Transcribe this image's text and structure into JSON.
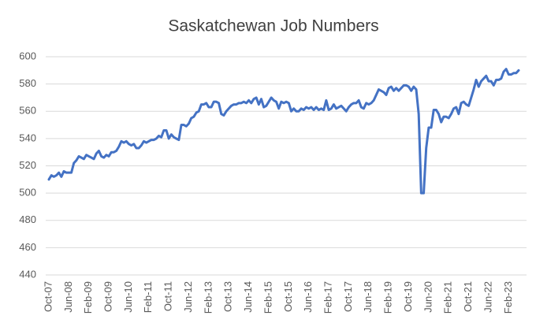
{
  "chart_data": {
    "type": "line",
    "title": "Saskatchewan Job Numbers",
    "categories": [
      "Oct-07",
      null,
      null,
      null,
      null,
      null,
      null,
      null,
      "Jun-08",
      null,
      null,
      null,
      null,
      null,
      null,
      null,
      "Feb-09",
      null,
      null,
      null,
      null,
      null,
      null,
      null,
      "Oct-09",
      null,
      null,
      null,
      null,
      null,
      null,
      null,
      "Jun-10",
      null,
      null,
      null,
      null,
      null,
      null,
      null,
      "Feb-11",
      null,
      null,
      null,
      null,
      null,
      null,
      null,
      "Oct-11",
      null,
      null,
      null,
      null,
      null,
      null,
      null,
      "Jun-12",
      null,
      null,
      null,
      null,
      null,
      null,
      null,
      "Feb-13",
      null,
      null,
      null,
      null,
      null,
      null,
      null,
      "Oct-13",
      null,
      null,
      null,
      null,
      null,
      null,
      null,
      "Jun-14",
      null,
      null,
      null,
      null,
      null,
      null,
      null,
      "Feb-15",
      null,
      null,
      null,
      null,
      null,
      null,
      null,
      "Oct-15",
      null,
      null,
      null,
      null,
      null,
      null,
      null,
      "Jun-16",
      null,
      null,
      null,
      null,
      null,
      null,
      null,
      "Feb-17",
      null,
      null,
      null,
      null,
      null,
      null,
      null,
      "Oct-17",
      null,
      null,
      null,
      null,
      null,
      null,
      null,
      "Jun-18",
      null,
      null,
      null,
      null,
      null,
      null,
      null,
      "Feb-19",
      null,
      null,
      null,
      null,
      null,
      null,
      null,
      "Oct-19",
      null,
      null,
      null,
      null,
      null,
      null,
      null,
      "Jun-20",
      null,
      null,
      null,
      null,
      null,
      null,
      null,
      "Feb-21",
      null,
      null,
      null,
      null,
      null,
      null,
      null,
      "Oct-21",
      null,
      null,
      null,
      null,
      null,
      null,
      null,
      "Jun-22",
      null,
      null,
      null,
      null,
      null,
      null,
      null,
      "Feb-23",
      null,
      null,
      null,
      null
    ],
    "values": [
      510,
      513,
      512,
      513,
      515,
      512,
      516,
      515,
      515,
      515,
      522,
      524,
      527,
      526,
      525,
      528,
      527,
      526,
      525,
      529,
      531,
      527,
      526,
      528,
      527,
      530,
      530,
      531,
      534,
      538,
      537,
      538,
      536,
      535,
      536,
      533,
      533,
      535,
      538,
      537,
      538,
      539,
      539,
      540,
      542,
      541,
      546,
      546,
      540,
      543,
      541,
      540,
      539,
      550,
      550,
      549,
      551,
      555,
      556,
      559,
      560,
      565,
      565,
      566,
      563,
      563,
      567,
      567,
      566,
      558,
      557,
      560,
      562,
      564,
      565,
      565,
      566,
      566,
      567,
      566,
      568,
      566,
      569,
      570,
      565,
      569,
      563,
      564,
      567,
      570,
      568,
      567,
      562,
      567,
      566,
      567,
      566,
      560,
      562,
      560,
      560,
      562,
      561,
      563,
      562,
      563,
      561,
      563,
      561,
      562,
      561,
      568,
      561,
      562,
      565,
      562,
      563,
      564,
      562,
      560,
      563,
      565,
      566,
      566,
      568,
      563,
      562,
      566,
      565,
      566,
      568,
      572,
      576,
      575,
      574,
      572,
      577,
      578,
      575,
      577,
      575,
      577,
      579,
      579,
      578,
      575,
      578,
      576,
      558,
      500,
      500,
      533,
      548,
      548,
      561,
      561,
      558,
      552,
      556,
      556,
      555,
      558,
      562,
      563,
      558,
      566,
      567,
      565,
      564,
      570,
      576,
      583,
      578,
      582,
      584,
      586,
      582,
      582,
      579,
      583,
      583,
      584,
      589,
      591,
      587,
      587,
      588,
      588,
      590
    ],
    "color": "#4472c4",
    "ylim": [
      440,
      600
    ],
    "yticks": [
      440,
      460,
      480,
      500,
      520,
      540,
      560,
      580,
      600
    ],
    "grid": true
  }
}
